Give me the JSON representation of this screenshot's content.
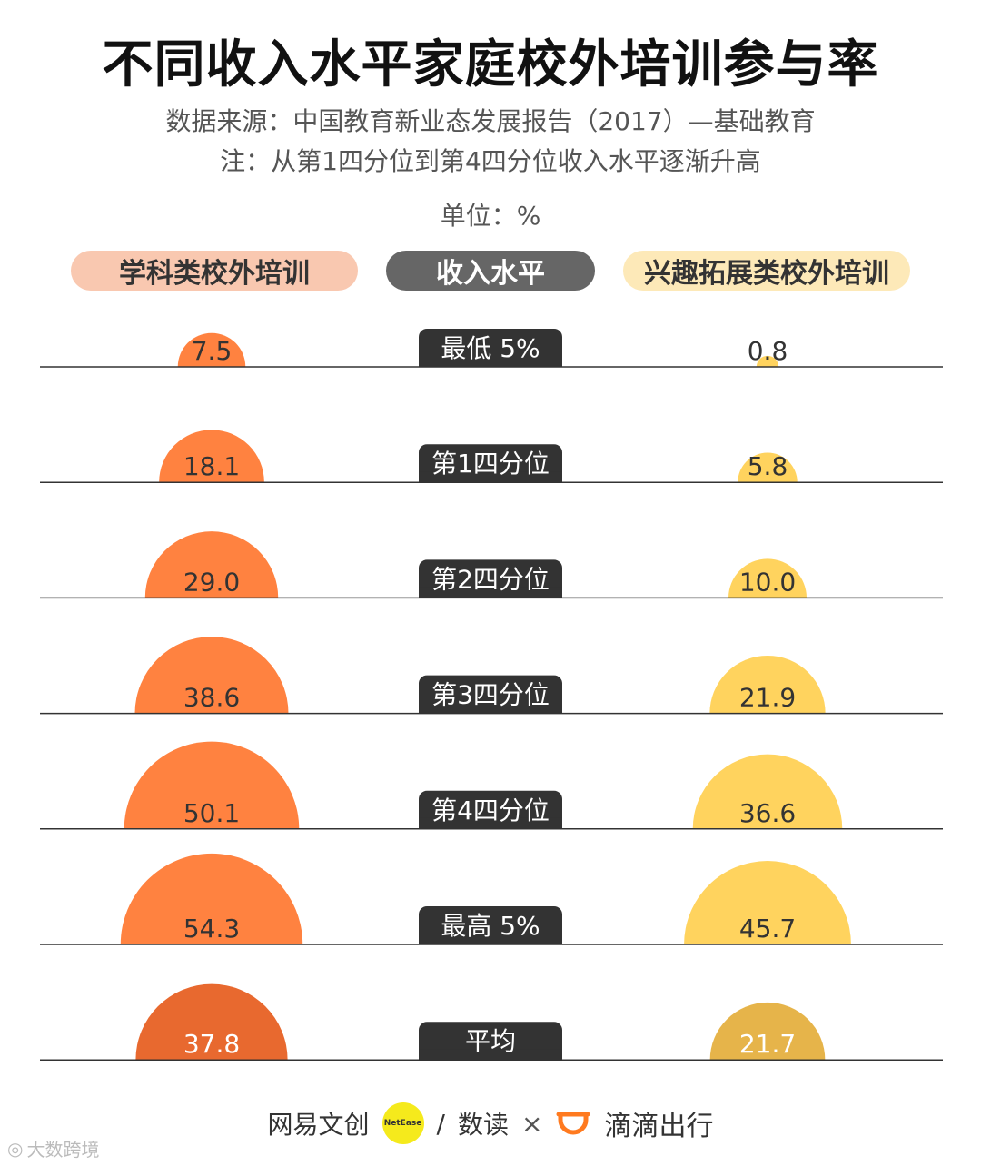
{
  "title": "不同收入水平家庭校外培训参与率",
  "source_line": "数据来源：中国教育新业态发展报告（2017）—基础教育",
  "note_line": "注：从第1四分位到第4四分位收入水平逐渐升高",
  "unit_label": "单位：%",
  "headers": {
    "left": "学科类校外培训",
    "middle": "收入水平",
    "right": "兴趣拓展类校外培训"
  },
  "colors": {
    "academic": "#ff8240",
    "academic_avg": "#e8692f",
    "interest": "#ffd35e",
    "interest_avg": "#e6b44a",
    "label_bg": "#333333",
    "axis": "#333333"
  },
  "chart_data": {
    "type": "semicircle-comparison",
    "title": "不同收入水平家庭校外培训参与率",
    "unit": "%",
    "categories": [
      "最低 5%",
      "第1四分位",
      "第2四分位",
      "第3四分位",
      "第4四分位",
      "最高 5%",
      "平均"
    ],
    "series": [
      {
        "name": "学科类校外培训",
        "values": [
          7.5,
          18.1,
          29.0,
          38.6,
          50.1,
          54.3,
          37.8
        ]
      },
      {
        "name": "兴趣拓展类校外培训",
        "values": [
          0.8,
          5.8,
          10.0,
          21.9,
          36.6,
          45.7,
          21.7
        ]
      }
    ],
    "value_labels": {
      "left": [
        "7.5",
        "18.1",
        "29.0",
        "38.6",
        "50.1",
        "54.3",
        "37.8"
      ],
      "right": [
        "0.8",
        "5.8",
        "10.0",
        "21.9",
        "36.6",
        "45.7",
        "21.7"
      ]
    }
  },
  "footer": {
    "brand1": "网易文创",
    "badge": "NetEase",
    "slash": "/",
    "brand2": "数读",
    "times": "×",
    "brand3": "滴滴出行"
  },
  "watermark": "大数跨境"
}
